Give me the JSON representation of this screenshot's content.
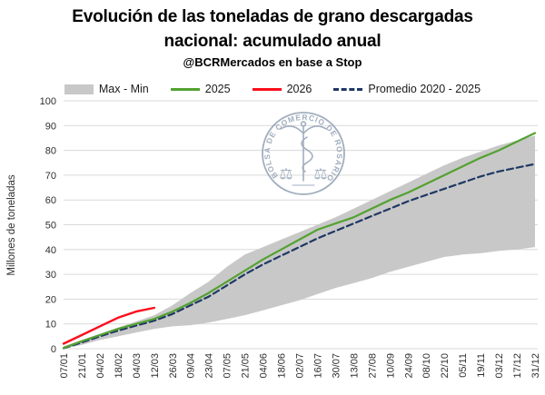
{
  "header": {
    "title_line1": "Evolución de las toneladas de grano descargadas",
    "title_line2": "nacional: acumulado anual",
    "subtitle": "@BCRMercados en base a Stop"
  },
  "watermark": {
    "text": "BOLSA DE COMERCIO DE ROSARIO"
  },
  "chart_data": {
    "type": "line",
    "title": "Evolución de las toneladas de grano descargadas nacional: acumulado anual",
    "xlabel": "",
    "ylabel": "Millones de toneladas",
    "ylim": [
      0,
      100
    ],
    "ytick_step": 10,
    "grid": true,
    "grid_color": "#d9d9d9",
    "legend_position": "top",
    "categories": [
      "07/01",
      "21/01",
      "04/02",
      "18/02",
      "04/03",
      "12/03",
      "26/03",
      "09/04",
      "23/04",
      "07/05",
      "21/05",
      "04/06",
      "18/06",
      "02/07",
      "16/07",
      "30/07",
      "13/08",
      "27/08",
      "10/09",
      "24/09",
      "08/10",
      "22/10",
      "05/11",
      "19/11",
      "03/12",
      "17/12",
      "31/12"
    ],
    "series": [
      {
        "name": "Max - Min",
        "type": "band",
        "color": "#c8c8c8",
        "max": [
          1,
          3.5,
          6,
          8.5,
          11,
          13.5,
          17.5,
          22.5,
          27,
          33,
          38,
          41,
          44,
          47,
          50,
          53,
          56.5,
          60,
          63.5,
          67,
          70.5,
          74,
          77,
          79.5,
          82,
          84,
          86
        ],
        "min": [
          0,
          1.5,
          3.5,
          5,
          6.5,
          8,
          9,
          9.5,
          10.5,
          12,
          13.5,
          15.5,
          17.5,
          19.5,
          22,
          24.5,
          26.5,
          28.5,
          31,
          33,
          35,
          37,
          38,
          38.5,
          39.5,
          40,
          41
        ]
      },
      {
        "name": "2025",
        "type": "line",
        "color": "#53a231",
        "width": 2.2,
        "dash": false,
        "values": [
          0.3,
          3,
          5.5,
          8,
          10,
          12,
          15,
          18.5,
          22.5,
          27,
          31.5,
          36,
          40,
          44,
          48,
          50.5,
          53,
          56.5,
          60,
          63,
          66.5,
          70,
          73.5,
          77,
          80,
          83.5,
          87
        ]
      },
      {
        "name": "2026",
        "type": "line",
        "color": "#fb0d1b",
        "width": 2.4,
        "dash": false,
        "values": [
          2,
          5.5,
          9,
          12.5,
          15,
          16.5
        ]
      },
      {
        "name": "Promedio 2020 - 2025",
        "type": "line",
        "color": "#1f3864",
        "width": 2.2,
        "dash": true,
        "values": [
          0.2,
          2.5,
          5,
          7.3,
          9.3,
          11.3,
          14,
          17.5,
          21,
          25.5,
          30,
          34,
          37.5,
          41,
          44.5,
          47.5,
          50.5,
          53.5,
          56.5,
          59.5,
          62,
          64.5,
          67,
          69.5,
          71.5,
          73,
          74.5
        ]
      }
    ]
  }
}
